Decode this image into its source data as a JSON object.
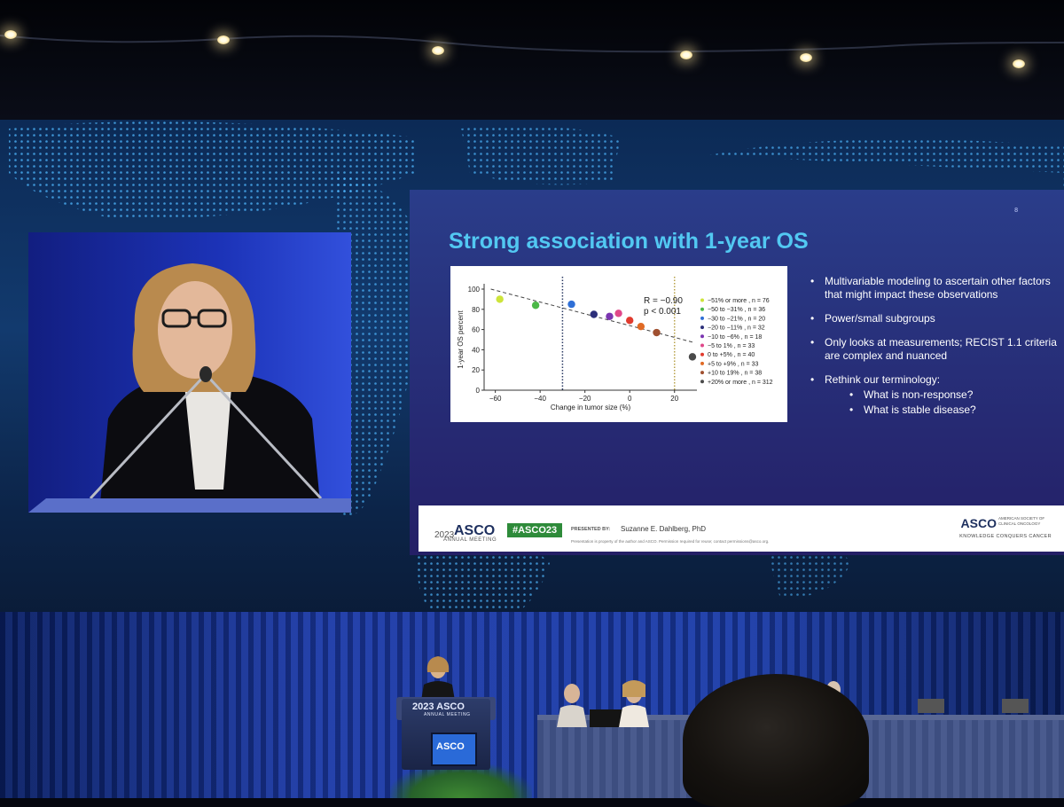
{
  "slide": {
    "number": "8",
    "title": "Strong association with 1-year OS",
    "bullets": [
      {
        "text": "Multivariable modeling to ascertain other factors that might impact these observations"
      },
      {
        "text": "Power/small subgroups"
      },
      {
        "text": "Only looks at measurements; RECIST 1.1 criteria are complex and nuanced"
      },
      {
        "text": "Rethink our terminology:",
        "sub": [
          "What is non-response?",
          "What is stable disease?"
        ]
      }
    ],
    "footer": {
      "year": "2023",
      "brand": "ASCO",
      "meeting": "ANNUAL MEETING",
      "hashtag": "#ASCO23",
      "presented_by_label": "PRESENTED BY:",
      "presenter": "Suzanne E. Dahlberg, PhD",
      "disclaimer": "Presentation is property of the author and ASCO. Permission required for reuse; contact permissions@asco.org.",
      "society_brand": "ASCO",
      "society_name": "AMERICAN SOCIETY OF CLINICAL ONCOLOGY",
      "tagline": "KNOWLEDGE CONQUERS CANCER"
    }
  },
  "chart_data": {
    "type": "scatter",
    "xlabel": "Change in tumor size (%)",
    "ylabel": "1-year OS percent",
    "xlim": [
      -65,
      30
    ],
    "ylim": [
      0,
      100
    ],
    "xticks": [
      -60,
      -40,
      -20,
      0,
      20
    ],
    "xtick_labels": [
      "−60",
      "−40",
      "−20",
      "0",
      "20"
    ],
    "yticks": [
      0,
      20,
      40,
      60,
      80,
      100
    ],
    "vlines": [
      -30,
      20
    ],
    "trend": {
      "x": [
        -62,
        29
      ],
      "y": [
        100,
        47
      ]
    },
    "annotation": [
      "R = −0.90",
      "p < 0.001"
    ],
    "legend_position": "right",
    "grid": false,
    "series": [
      {
        "name": "−51% or more , n = 76",
        "x": -58,
        "y": 90,
        "color": "#cde43a"
      },
      {
        "name": "−50 to −31% , n = 36",
        "x": -42,
        "y": 84,
        "color": "#4cb848"
      },
      {
        "name": "−30 to −21% , n = 20",
        "x": -26,
        "y": 85,
        "color": "#2f6fd6"
      },
      {
        "name": "−20 to −11% , n = 32",
        "x": -16,
        "y": 75,
        "color": "#2c2f7a"
      },
      {
        "name": "−10 to −6% , n = 18",
        "x": -9,
        "y": 73,
        "color": "#7a35b0"
      },
      {
        "name": "−5 to 1% , n = 33",
        "x": -5,
        "y": 76,
        "color": "#e0488a"
      },
      {
        "name": "0 to +5% , n = 40",
        "x": 0,
        "y": 69,
        "color": "#e13b2e"
      },
      {
        "name": "+5 to +9% , n = 33",
        "x": 5,
        "y": 63,
        "color": "#e06a25"
      },
      {
        "name": "+10 to 19% , n = 38",
        "x": 12,
        "y": 57,
        "color": "#a05030"
      },
      {
        "name": "+20% or more , n = 312",
        "x": 28,
        "y": 33,
        "color": "#4a4a4a"
      }
    ]
  },
  "podium": {
    "brand": "ASCO",
    "year": "2023",
    "meeting": "ANNUAL MEETING"
  }
}
